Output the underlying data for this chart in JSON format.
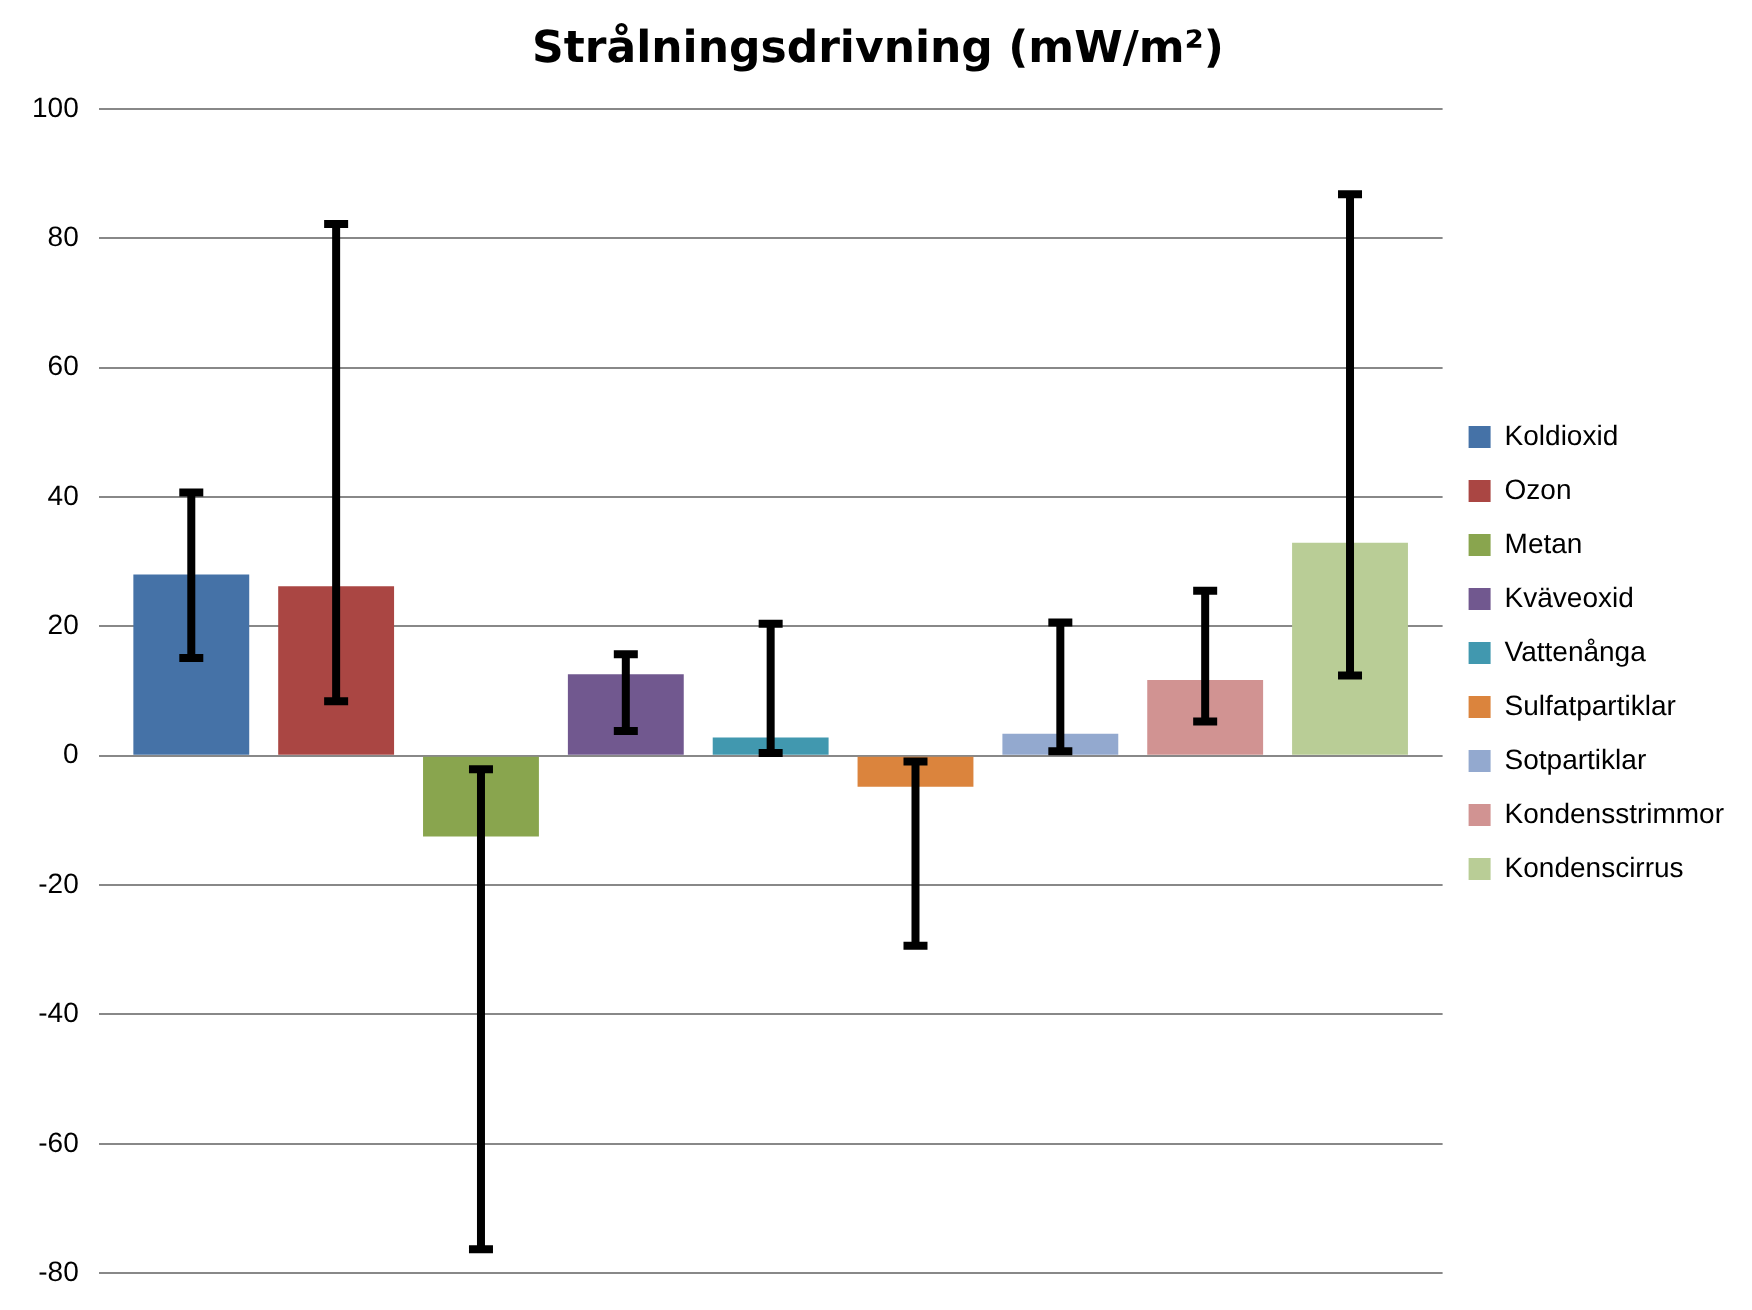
{
  "chart_data": {
    "type": "bar",
    "title": "Strålningsdrivning (mW/m²)",
    "categories": [
      null
    ],
    "series": [
      {
        "name": "Koldioxid",
        "color": "#4572a7",
        "values": [
          28
        ],
        "errors": [
          [
            15.1,
            40.7
          ]
        ]
      },
      {
        "name": "Ozon",
        "color": "#aa4643",
        "values": [
          26.2
        ],
        "errors": [
          [
            8.4,
            82.2
          ]
        ]
      },
      {
        "name": "Metan",
        "color": "#89a54e",
        "values": [
          -12.5
        ],
        "errors": [
          [
            -76.3,
            -2.1
          ]
        ]
      },
      {
        "name": "Kväveoxid",
        "color": "#71588f",
        "values": [
          12.6
        ],
        "errors": [
          [
            3.8,
            15.7
          ]
        ]
      },
      {
        "name": "Vattenånga",
        "color": "#4198af",
        "values": [
          2.8
        ],
        "errors": [
          [
            0.4,
            20.4
          ]
        ]
      },
      {
        "name": "Sulfatpartiklar",
        "color": "#db843d",
        "values": [
          -4.8
        ],
        "errors": [
          [
            -29.4,
            -0.9
          ]
        ]
      },
      {
        "name": "Sotpartiklar",
        "color": "#93a9cf",
        "values": [
          3.4
        ],
        "errors": [
          [
            0.7,
            20.6
          ]
        ]
      },
      {
        "name": "Kondensstrimmor",
        "color": "#d19392",
        "values": [
          11.7
        ],
        "errors": [
          [
            5.3,
            25.5
          ]
        ]
      },
      {
        "name": "Kondenscirrus",
        "color": "#b9cd96",
        "values": [
          32.9
        ],
        "errors": [
          [
            12.4,
            86.8
          ]
        ]
      }
    ],
    "ylim": [
      -80,
      100
    ],
    "yticks": [
      -80,
      -60,
      -40,
      -20,
      0,
      20,
      40,
      60,
      80,
      100
    ],
    "grid": "y",
    "legend": "right"
  }
}
